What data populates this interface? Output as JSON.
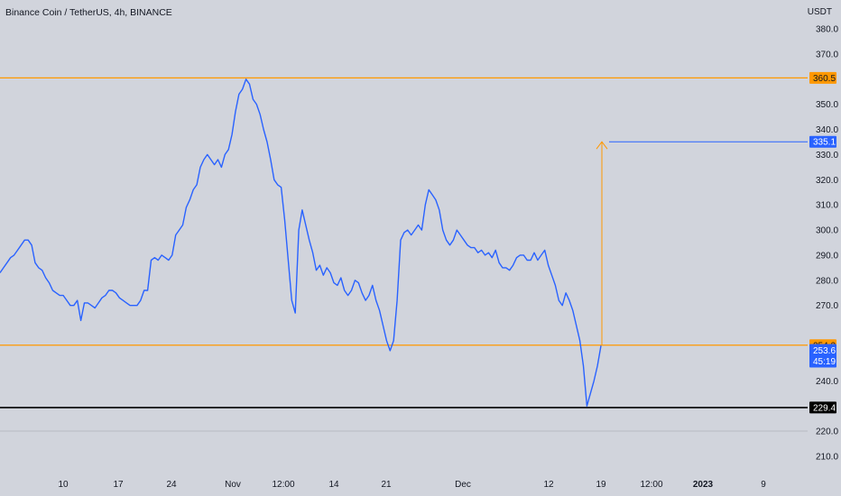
{
  "header": {
    "title": "Binance Coin / TetherUS, 4h, BINANCE",
    "currency": "USDT"
  },
  "colors": {
    "background": "#d1d4dc",
    "price_line": "#2962ff",
    "level_orange": "#ff9800",
    "level_black": "#000000",
    "target_blue": "#2962ff"
  },
  "chart_data": {
    "type": "line",
    "series": [
      {
        "values": [
          283,
          285,
          287,
          289,
          290,
          292,
          294,
          296,
          296,
          294,
          287,
          285,
          284,
          281,
          279,
          276,
          275,
          274,
          274,
          272,
          270,
          270,
          272,
          264,
          271,
          271,
          270,
          269,
          271,
          273,
          274,
          276,
          276,
          275,
          273,
          272,
          271,
          270,
          270,
          270,
          272,
          276,
          276,
          288,
          289,
          288,
          290,
          289,
          288,
          290,
          298,
          300,
          302,
          309,
          312,
          316,
          318,
          325,
          328,
          330,
          328,
          326,
          328,
          325,
          330,
          332,
          338,
          347,
          354,
          356,
          360,
          358,
          352,
          350,
          346,
          340,
          335,
          328,
          320,
          318,
          317,
          304,
          288,
          272,
          267,
          300,
          308,
          302,
          296,
          291,
          284,
          286,
          282,
          285,
          283,
          279,
          278,
          281,
          276,
          274,
          276,
          280,
          279,
          275,
          272,
          274,
          278,
          272,
          268,
          262,
          256,
          252,
          256,
          272,
          296,
          299,
          300,
          298,
          300,
          302,
          300,
          310,
          316,
          314,
          312,
          308,
          300,
          296,
          294,
          296,
          300,
          298,
          296,
          294,
          293,
          293,
          291,
          292,
          290,
          291,
          289,
          292,
          287,
          285,
          285,
          284,
          286,
          289,
          290,
          290,
          288,
          288,
          291,
          288,
          290,
          292,
          286,
          282,
          278,
          272,
          270,
          275,
          272,
          268,
          262,
          256,
          246,
          230,
          235,
          240,
          246,
          254
        ],
        "x_range": [
          "2022-10-06",
          "2022-12-19"
        ]
      }
    ],
    "ylim": [
      205,
      385
    ],
    "yticks": [
      210,
      220,
      240,
      270,
      280,
      290,
      300,
      310,
      320,
      330,
      340,
      350,
      370,
      380
    ],
    "xticks": [
      "10",
      "17",
      "24",
      "Nov",
      "12:00",
      "14",
      "21",
      "Dec",
      "12",
      "19",
      "12:00",
      "2023",
      "9"
    ],
    "xticks_bold": [
      "2023"
    ],
    "levels": [
      {
        "name": "resistance",
        "value": 360.5,
        "label": "360.5",
        "color": "#ff9800"
      },
      {
        "name": "support",
        "value": 254.2,
        "label": "254.2",
        "color": "#ff9800"
      },
      {
        "name": "low",
        "value": 229.4,
        "label": "229.4",
        "color": "#000000"
      }
    ],
    "target": {
      "value": 335.1,
      "label": "335.1",
      "from_value": 254.2
    },
    "current_price": {
      "label": "253.6",
      "countdown": "45:19"
    },
    "grid": false,
    "legend": "none"
  }
}
